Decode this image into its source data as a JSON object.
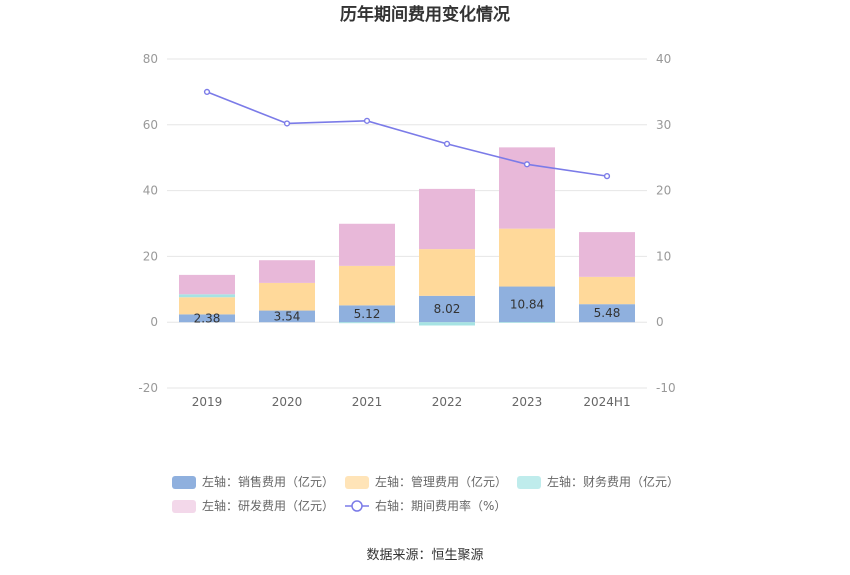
{
  "chart_data": {
    "type": "bar",
    "title": "历年期间费用变化情况",
    "categories": [
      "2019",
      "2020",
      "2021",
      "2022",
      "2023",
      "2024H1"
    ],
    "y_left": {
      "ylim": [
        -20,
        80
      ],
      "ticks": [
        -20,
        0,
        20,
        40,
        60,
        80
      ]
    },
    "y_right": {
      "ylim": [
        -10,
        40
      ],
      "ticks": [
        -10,
        0,
        10,
        20,
        30,
        40
      ]
    },
    "grid": true,
    "stacked": true,
    "series": [
      {
        "name": "左轴：销售费用（亿元）",
        "axis": "left",
        "kind": "bar",
        "color": "#8fb0de",
        "values": [
          2.38,
          3.54,
          5.12,
          8.02,
          10.84,
          5.48
        ],
        "show_labels": true
      },
      {
        "name": "左轴：管理费用（亿元）",
        "axis": "left",
        "kind": "bar",
        "color": "#ffd99a",
        "values": [
          5.2,
          8.4,
          12.0,
          14.2,
          17.6,
          8.3
        ]
      },
      {
        "name": "左轴：财务费用（亿元）",
        "axis": "left",
        "kind": "bar",
        "color": "#a6e3e3",
        "values": [
          0.9,
          0.0,
          -0.3,
          -1.0,
          -0.2,
          0.0
        ]
      },
      {
        "name": "左轴：研发费用（亿元）",
        "axis": "left",
        "kind": "bar",
        "color": "#e8b8d9",
        "values": [
          5.9,
          6.9,
          12.8,
          18.3,
          24.7,
          13.6
        ]
      },
      {
        "name": "右轴：期间费用率（%）",
        "axis": "right",
        "kind": "line",
        "color": "#7b7be8",
        "values": [
          35.0,
          30.2,
          30.6,
          27.1,
          24.0,
          22.2
        ]
      }
    ],
    "legend": {
      "placement": "bottom",
      "swatch_colors": [
        "#8fb0de",
        "#ffe4b8",
        "#bfecec",
        "#f3d8ea"
      ]
    }
  },
  "source": "数据来源：恒生聚源"
}
